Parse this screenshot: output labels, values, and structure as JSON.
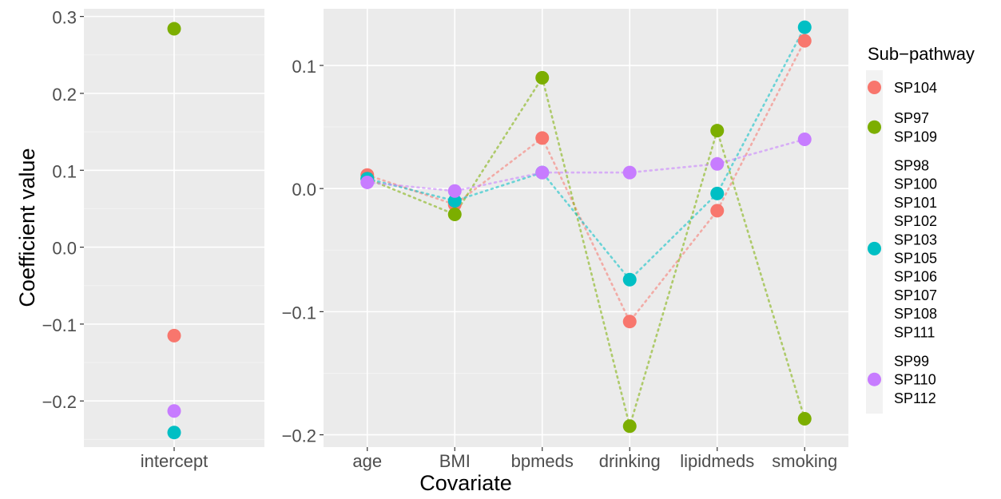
{
  "chart_data": {
    "type": "scatter",
    "ylabel": "Coefficient value",
    "xlabel": "Covariate",
    "legend": {
      "title": "Sub−pathway",
      "placement": "right",
      "entries": [
        {
          "group": "g1",
          "labels": [
            "SP104"
          ],
          "color": "#F8766D"
        },
        {
          "group": "g2",
          "labels": [
            "SP97",
            "SP109"
          ],
          "color": "#7CAE00"
        },
        {
          "group": "g3",
          "labels": [
            "SP98",
            "SP100",
            "SP101",
            "SP102",
            "SP103",
            "SP105",
            "SP106",
            "SP107",
            "SP108",
            "SP111"
          ],
          "color": "#00BFC4"
        },
        {
          "group": "g4",
          "labels": [
            "SP99",
            "SP110",
            "SP112"
          ],
          "color": "#C77CFF"
        }
      ]
    },
    "panels": [
      {
        "categories": [
          "intercept"
        ],
        "ylim": [
          -0.26,
          0.31
        ],
        "yticks": [
          -0.2,
          -0.1,
          0.0,
          0.1,
          0.2,
          0.3
        ],
        "ytick_labels": [
          "−0.2",
          "−0.1",
          "0.0",
          "0.1",
          "0.2",
          "0.3"
        ],
        "connect": false,
        "series": [
          {
            "group": "g1",
            "values": [
              -0.115
            ]
          },
          {
            "group": "g2",
            "values": [
              0.284
            ]
          },
          {
            "group": "g3",
            "values": [
              -0.241
            ]
          },
          {
            "group": "g4",
            "values": [
              -0.213
            ]
          }
        ]
      },
      {
        "categories": [
          "age",
          "BMI",
          "bpmeds",
          "drinking",
          "lipidmeds",
          "smoking"
        ],
        "ylim": [
          -0.21,
          0.146
        ],
        "yticks": [
          -0.2,
          -0.1,
          0.0,
          0.1
        ],
        "ytick_labels": [
          "−0.2",
          "−0.1",
          "0.0",
          "0.1"
        ],
        "connect": true,
        "series": [
          {
            "group": "g1",
            "values": [
              0.011,
              -0.013,
              0.041,
              -0.108,
              -0.018,
              0.12
            ]
          },
          {
            "group": "g2",
            "values": [
              0.008,
              -0.021,
              0.09,
              -0.193,
              0.047,
              -0.187
            ]
          },
          {
            "group": "g3",
            "values": [
              0.008,
              -0.01,
              0.013,
              -0.074,
              -0.004,
              0.131
            ]
          },
          {
            "group": "g4",
            "values": [
              0.005,
              -0.002,
              0.013,
              0.013,
              0.02,
              0.04
            ]
          }
        ]
      }
    ]
  }
}
